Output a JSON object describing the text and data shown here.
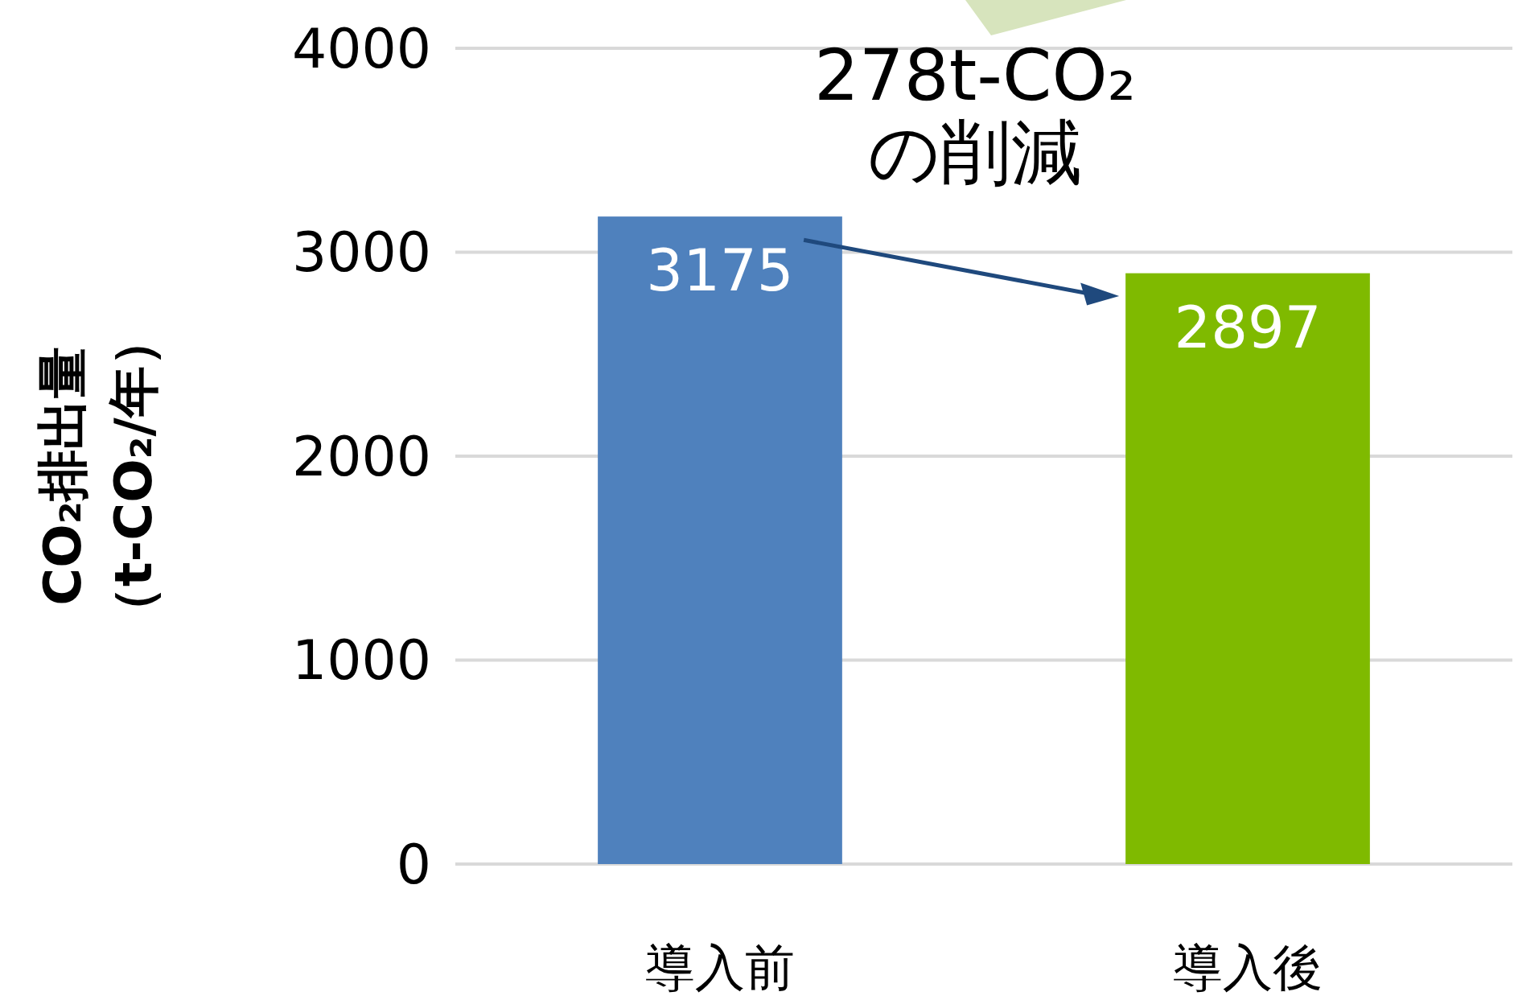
{
  "chart_data": {
    "type": "bar",
    "ylabel": "CO₂排出量（t-CO₂/年）",
    "categories": [
      "導入前",
      "導入後"
    ],
    "values": [
      3175,
      2897
    ],
    "colors": [
      "#4f81bd",
      "#7fba00"
    ],
    "ylim": [
      0,
      4000
    ],
    "yticks": [
      0,
      1000,
      2000,
      3000,
      4000
    ],
    "grid": "y",
    "data_labels": true,
    "annotations": [
      "278t-CO₂\nの削減"
    ]
  }
}
